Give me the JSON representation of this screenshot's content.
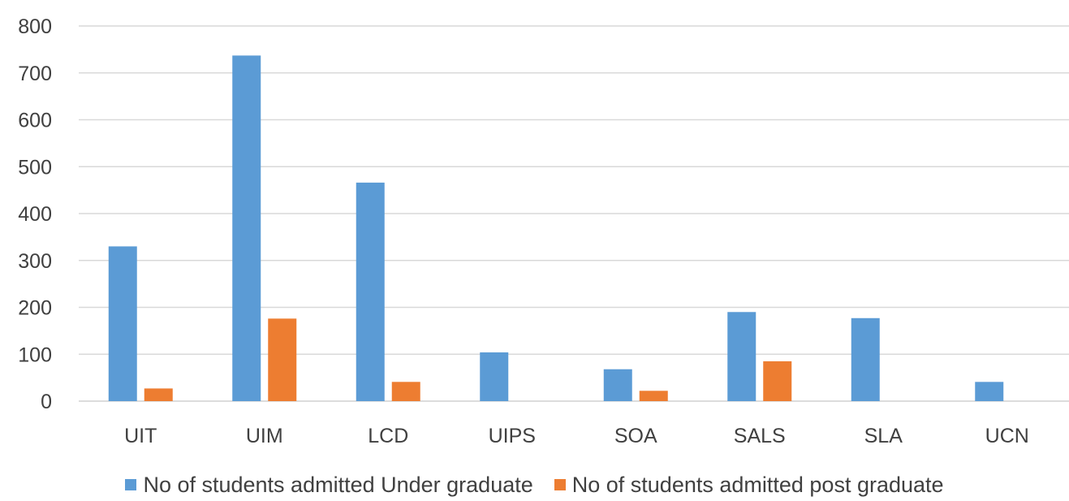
{
  "chart_data": {
    "type": "bar",
    "title": "",
    "xlabel": "",
    "ylabel": "",
    "ylim": [
      0,
      800
    ],
    "yticks": [
      0,
      100,
      200,
      300,
      400,
      500,
      600,
      700,
      800
    ],
    "grid": true,
    "legend_position": "bottom",
    "categories": [
      "UIT",
      "UIM",
      "LCD",
      "UIPS",
      "SOA",
      "SALS",
      "SLA",
      "UCN"
    ],
    "series": [
      {
        "name": "No of students admitted Under graduate",
        "color": "#5B9BD5",
        "values": [
          330,
          737,
          466,
          104,
          68,
          190,
          177,
          41
        ]
      },
      {
        "name": "No of students admitted post graduate",
        "color": "#ED7D31",
        "values": [
          27,
          176,
          41,
          0,
          22,
          85,
          0,
          0
        ]
      }
    ]
  }
}
